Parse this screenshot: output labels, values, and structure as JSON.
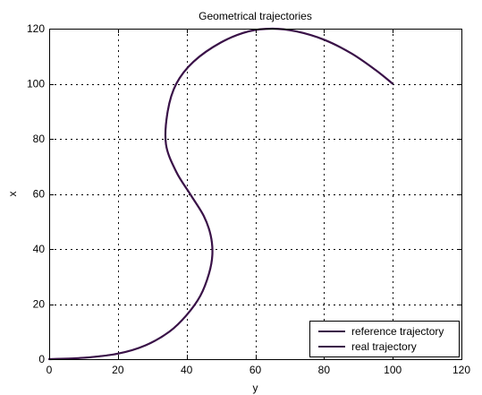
{
  "chart_data": {
    "type": "line",
    "title": "Geometrical trajectories",
    "xlabel": "y",
    "ylabel": "x",
    "xlim": [
      0,
      120
    ],
    "ylim": [
      0,
      120
    ],
    "xticks": [
      0,
      20,
      40,
      60,
      80,
      100,
      120
    ],
    "yticks": [
      0,
      20,
      40,
      60,
      80,
      100,
      120
    ],
    "xtick_labels": [
      "0",
      "20",
      "40",
      "60",
      "80",
      "100",
      "120"
    ],
    "ytick_labels": [
      "0",
      "20",
      "40",
      "60",
      "80",
      "100",
      "120"
    ],
    "grid": true,
    "grid_style": "dotted",
    "legend_position": "bottom-right",
    "series": [
      {
        "name": "reference trajectory",
        "color": "#3a1248",
        "x": [
          0,
          10,
          20,
          28,
          35,
          40,
          44,
          46.5,
          47.5,
          47,
          45,
          41,
          37,
          34,
          34.5,
          37,
          42,
          50,
          58,
          65,
          72,
          80,
          88,
          95,
          100
        ],
        "y": [
          0,
          0.5,
          2,
          5,
          10,
          16,
          23,
          31,
          38,
          45,
          52,
          60,
          68,
          78,
          90,
          100,
          108,
          115,
          119,
          120,
          119,
          116,
          111,
          105,
          100
        ]
      },
      {
        "name": "real trajectory",
        "color": "#3a1248",
        "x": [
          0,
          10,
          20,
          28,
          35,
          40,
          44,
          46.5,
          47.5,
          47,
          45,
          41,
          37,
          34,
          34.5,
          37,
          42,
          50,
          58,
          65,
          72,
          80,
          88,
          95,
          100
        ],
        "y": [
          0,
          0.5,
          2,
          5,
          10,
          16,
          23,
          31,
          38,
          45,
          52,
          60,
          68,
          78,
          90,
          100,
          108,
          115,
          119,
          120,
          119,
          116,
          111,
          105,
          100
        ]
      }
    ]
  }
}
